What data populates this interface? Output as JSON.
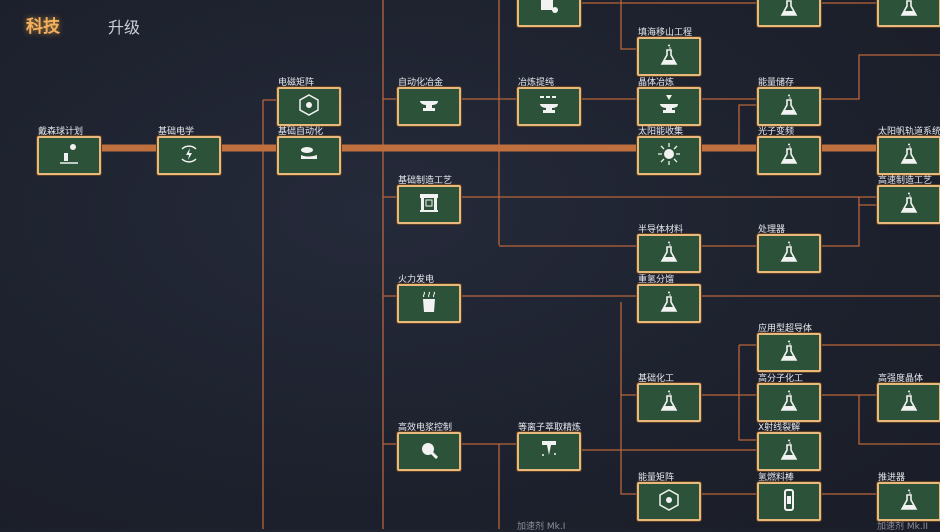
{
  "tabs": {
    "tech": "科技",
    "upgrade": "升级"
  },
  "colors": {
    "node_fill": "#2c5339",
    "node_border": "#e9b97c",
    "link": "#b8653a",
    "active_tab": "#f2b25c"
  },
  "nodes": [
    {
      "label": "",
      "icon": "gear-stack-icon"
    },
    {
      "label": "",
      "icon": "flask-icon"
    },
    {
      "label": "",
      "icon": "flask-icon"
    },
    {
      "label": "戴森球计划",
      "icon": "dyson-sphere-icon"
    },
    {
      "label": "基础电学",
      "icon": "electric-icon"
    },
    {
      "label": "电磁矩阵",
      "icon": "matrix-icon"
    },
    {
      "label": "基础自动化",
      "icon": "conveyor-icon"
    },
    {
      "label": "自动化冶金",
      "icon": "anvil-icon"
    },
    {
      "label": "基础制造工艺",
      "icon": "assembler-icon"
    },
    {
      "label": "火力发电",
      "icon": "power-plant-icon"
    },
    {
      "label": "高效电浆控制",
      "icon": "plasma-icon"
    },
    {
      "label": "冶炼提纯",
      "icon": "anvil-molecule-icon"
    },
    {
      "label": "等离子萃取精炼",
      "icon": "refinery-icon"
    },
    {
      "label": "填海移山工程",
      "icon": "flask-icon"
    },
    {
      "label": "晶体冶炼",
      "icon": "anvil-crystal-icon"
    },
    {
      "label": "太阳能收集",
      "icon": "sun-icon"
    },
    {
      "label": "半导体材料",
      "icon": "flask-icon"
    },
    {
      "label": "重氢分馏",
      "icon": "flask-icon"
    },
    {
      "label": "基础化工",
      "icon": "flask-icon"
    },
    {
      "label": "能量矩阵",
      "icon": "matrix-icon"
    },
    {
      "label": "能量储存",
      "icon": "flask-icon"
    },
    {
      "label": "光子变频",
      "icon": "flask-icon"
    },
    {
      "label": "处理器",
      "icon": "flask-icon"
    },
    {
      "label": "应用型超导体",
      "icon": "flask-icon"
    },
    {
      "label": "高分子化工",
      "icon": "flask-icon"
    },
    {
      "label": "X射线裂解",
      "icon": "flask-icon"
    },
    {
      "label": "氢燃料棒",
      "icon": "fuel-rod-icon"
    },
    {
      "label": "太阳帆轨道系统",
      "icon": "flask-icon"
    },
    {
      "label": "高速制造工艺",
      "icon": "flask-icon"
    },
    {
      "label": "高强度晶体",
      "icon": "flask-icon"
    },
    {
      "label": "推进器",
      "icon": "flask-icon"
    }
  ],
  "sub_labels": [
    "加速剂 Mk.I",
    "加速剂 Mk.II"
  ]
}
